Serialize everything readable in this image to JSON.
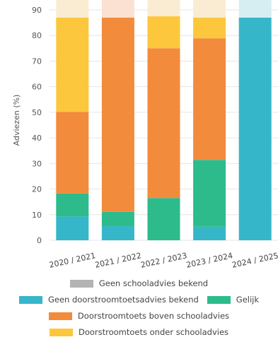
{
  "chart_data": {
    "type": "bar",
    "stacked": true,
    "ylabel": "Adviezen (%)",
    "ylim": [
      0,
      90
    ],
    "yticks": [
      0,
      10,
      20,
      30,
      40,
      50,
      60,
      70,
      80,
      90
    ],
    "categories": [
      "2020 / 2021",
      "2021 / 2022",
      "2022 / 2023",
      "2023 / 2024",
      "2024 / 2025"
    ],
    "series": [
      {
        "name": "Geen doorstroomtoetsadvies bekend",
        "color": "#36b6c9",
        "values": [
          9.3,
          5.5,
          0,
          5.3,
          87
        ]
      },
      {
        "name": "Gelijk",
        "color": "#2dbb8c",
        "values": [
          9.0,
          5.6,
          16.5,
          26.1,
          0
        ]
      },
      {
        "name": "Doorstroomtoets boven schooladvies",
        "color": "#f28b3c",
        "values": [
          31.8,
          75.9,
          58.5,
          47.5,
          0
        ]
      },
      {
        "name": "Doorstroomtoets onder schooladvies",
        "color": "#fcc73c",
        "values": [
          36.9,
          0,
          12.5,
          8.1,
          0
        ]
      },
      {
        "name": "Geen schooladvies bekend",
        "color": "#b3b3b3",
        "values": [
          0,
          0,
          0,
          0,
          0
        ]
      }
    ],
    "overflow_colors": [
      "#f9ecd2",
      "#fae1d1",
      "#f9ecd2",
      "#f9ecd2",
      "#d6eef2"
    ],
    "grid": true,
    "legend": "bottom"
  },
  "legend_rows": [
    [
      "Geen schooladvies bekend"
    ],
    [
      "Geen doorstroomtoetsadvies bekend",
      "Gelijk"
    ],
    [
      "Doorstroomtoets boven schooladvies"
    ],
    [
      "Doorstroomtoets onder schooladvies"
    ]
  ]
}
